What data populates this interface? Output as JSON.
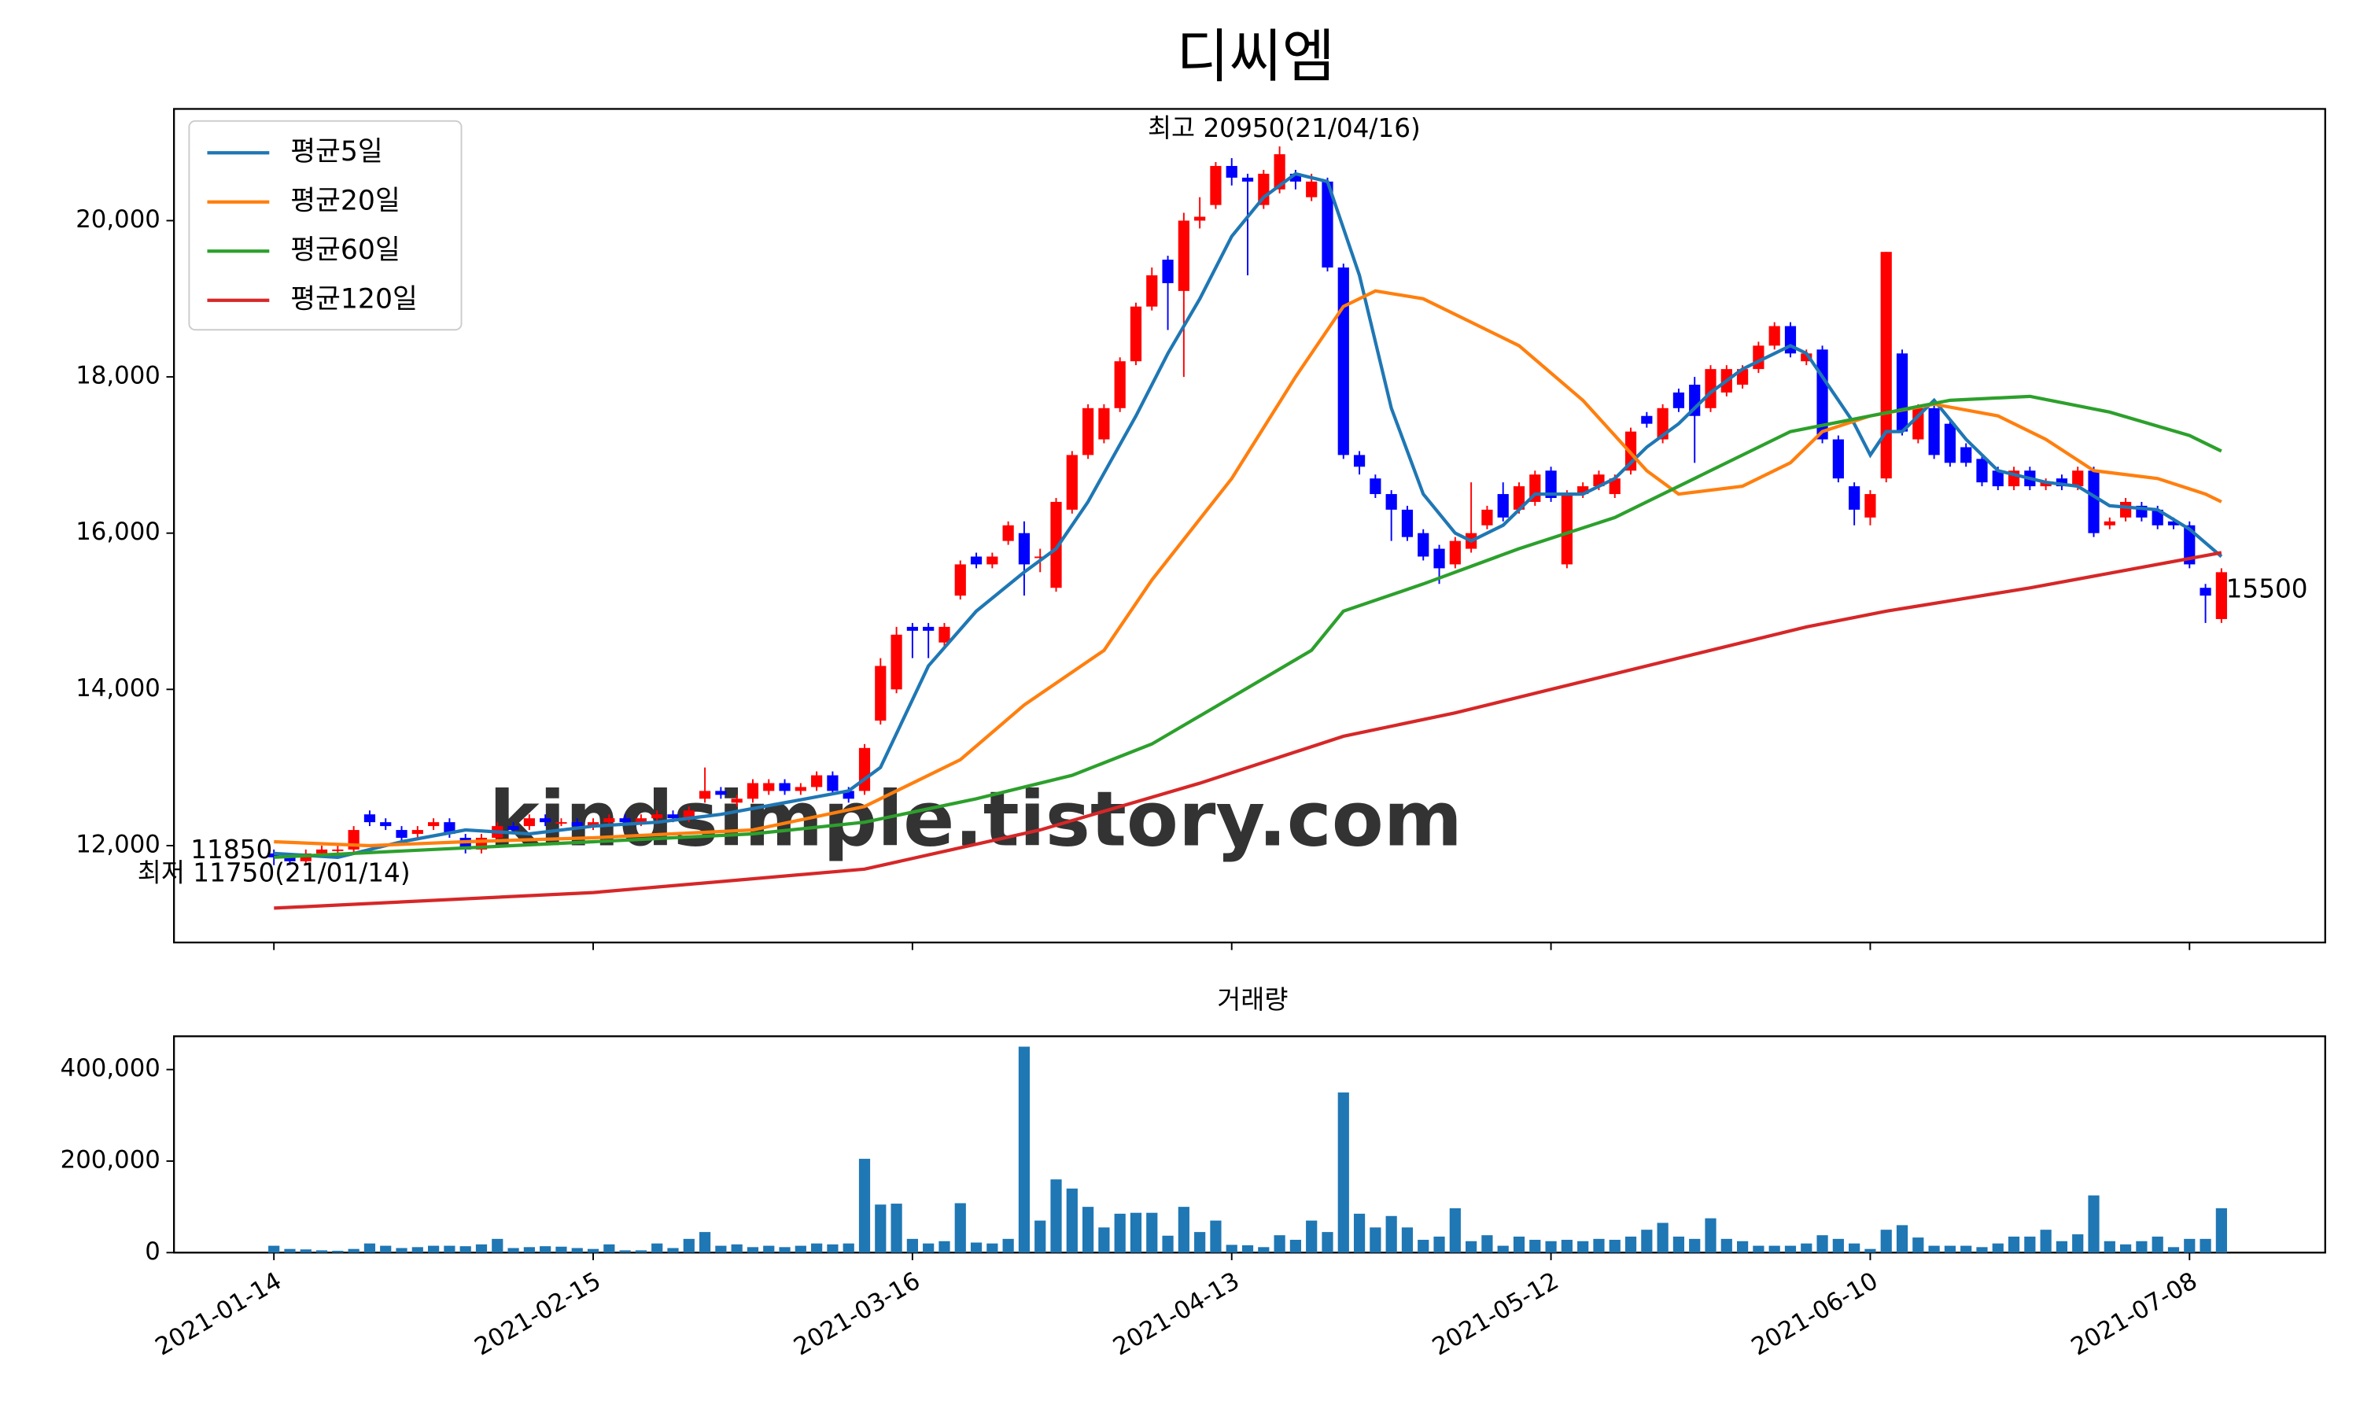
{
  "chart_data": [
    {
      "type": "candlestick",
      "title": "디씨엠",
      "open": [
        11900,
        11850,
        11800,
        11900,
        11950,
        11950,
        12400,
        12300,
        12200,
        12150,
        12250,
        12300,
        12100,
        11950,
        12100,
        12250,
        12250,
        12350,
        12300,
        12300,
        12250,
        12300,
        12350,
        12300,
        12350,
        12400,
        12350,
        12600,
        12700,
        12550,
        12600,
        12700,
        12800,
        12700,
        12750,
        12900,
        12700,
        12700,
        13600,
        14000,
        14800,
        14800,
        14600,
        15200,
        15700,
        15600,
        15900,
        16000,
        15700,
        15300,
        16300,
        17000,
        17200,
        17600,
        18200,
        18900,
        19500,
        19100,
        20000,
        20200,
        20700,
        20550,
        20200,
        20400,
        20600,
        20300,
        20500,
        19400,
        17000,
        16700,
        16500,
        16300,
        16000,
        15800,
        15600,
        15800,
        16100,
        16500,
        16300,
        16400,
        16800,
        15600,
        16500,
        16600,
        16500,
        16800,
        17500,
        17200,
        17800,
        17900,
        17600,
        17800,
        17900,
        18100,
        18400,
        18650,
        18200,
        18350,
        17200,
        16600,
        16200,
        16700,
        18300,
        17200,
        17600,
        17400,
        17100,
        16950,
        16800,
        16600,
        16800,
        16600,
        16700,
        16600,
        16800,
        16100,
        16200,
        16350,
        16300,
        16150,
        16100,
        15300,
        14900
      ],
      "high": [
        11950,
        11900,
        11950,
        12000,
        12000,
        12250,
        12450,
        12350,
        12250,
        12250,
        12350,
        12350,
        12150,
        12150,
        12300,
        12300,
        12400,
        12400,
        12350,
        12350,
        12350,
        12400,
        12400,
        12400,
        12450,
        12450,
        12500,
        13000,
        12750,
        12650,
        12850,
        12850,
        12850,
        12800,
        12950,
        12950,
        12750,
        13300,
        14400,
        14800,
        14850,
        14850,
        14850,
        15650,
        15750,
        15750,
        16150,
        16150,
        15800,
        16450,
        17050,
        17650,
        17650,
        18250,
        18950,
        19400,
        19550,
        20100,
        20300,
        20750,
        20800,
        20600,
        20650,
        20950,
        20650,
        20600,
        20550,
        19450,
        17050,
        16750,
        16550,
        16350,
        16050,
        15850,
        15950,
        16650,
        16350,
        16650,
        16650,
        16800,
        16850,
        16550,
        16650,
        16800,
        16750,
        17350,
        17550,
        17650,
        17850,
        18000,
        18150,
        18150,
        18150,
        18450,
        18700,
        18700,
        18350,
        18400,
        17250,
        16650,
        16550,
        19600,
        18350,
        17650,
        17650,
        17450,
        17150,
        17000,
        16850,
        16850,
        16850,
        16700,
        16750,
        16850,
        16850,
        16200,
        16450,
        16400,
        16350,
        16200,
        16150,
        15350,
        15550
      ],
      "low": [
        11750,
        11750,
        11750,
        11850,
        11900,
        11900,
        12250,
        12200,
        12050,
        12100,
        12200,
        12100,
        11900,
        11900,
        12050,
        12150,
        12200,
        12250,
        12250,
        12200,
        12200,
        12250,
        12250,
        12250,
        12300,
        12300,
        12300,
        12550,
        12600,
        12500,
        12550,
        12650,
        12650,
        12650,
        12700,
        12650,
        12550,
        12650,
        13550,
        13950,
        14400,
        14400,
        14550,
        15150,
        15550,
        15550,
        15850,
        15200,
        15500,
        15250,
        16250,
        16950,
        17150,
        17550,
        18150,
        18850,
        18600,
        18000,
        19900,
        20150,
        20450,
        19300,
        20150,
        20350,
        20400,
        20250,
        19350,
        16950,
        16750,
        16450,
        15900,
        15900,
        15650,
        15350,
        15550,
        15750,
        16050,
        16150,
        16250,
        16350,
        16400,
        15550,
        16450,
        16550,
        16450,
        16750,
        17350,
        17150,
        17550,
        16900,
        17550,
        17750,
        17850,
        18050,
        18350,
        18250,
        18150,
        17150,
        16650,
        16100,
        16100,
        16650,
        17250,
        17150,
        16950,
        16850,
        16850,
        16600,
        16550,
        16550,
        16550,
        16550,
        16550,
        16550,
        15950,
        16050,
        16150,
        16150,
        16050,
        16050,
        15550,
        14850,
        14850
      ],
      "close": [
        11850,
        11800,
        11900,
        11950,
        11950,
        12200,
        12300,
        12250,
        12100,
        12200,
        12300,
        12150,
        11950,
        12100,
        12250,
        12200,
        12350,
        12300,
        12300,
        12250,
        12300,
        12350,
        12300,
        12350,
        12400,
        12350,
        12450,
        12700,
        12650,
        12600,
        12800,
        12800,
        12700,
        12750,
        12900,
        12700,
        12600,
        13250,
        14300,
        14700,
        14750,
        14750,
        14800,
        15600,
        15600,
        15700,
        16100,
        15600,
        15700,
        16400,
        17000,
        17600,
        17600,
        18200,
        18900,
        19300,
        19200,
        20000,
        20050,
        20700,
        20550,
        20500,
        20600,
        20850,
        20500,
        20500,
        19400,
        17000,
        16850,
        16500,
        16300,
        15950,
        15700,
        15550,
        15900,
        16000,
        16300,
        16200,
        16600,
        16750,
        16450,
        16500,
        16600,
        16750,
        16700,
        17300,
        17400,
        17600,
        17600,
        17500,
        18100,
        18100,
        18100,
        18400,
        18650,
        18300,
        18300,
        17200,
        16700,
        16300,
        16500,
        19600,
        17300,
        17600,
        17000,
        16900,
        16900,
        16650,
        16600,
        16800,
        16600,
        16650,
        16600,
        16800,
        16000,
        16150,
        16400,
        16200,
        16100,
        16100,
        15600,
        15200,
        15500
      ],
      "up_color": "#ff0000",
      "down_color": "#0000ff",
      "series": [
        {
          "name": "평균5일",
          "color": "#1f77b4",
          "x": [
            0,
            4,
            8,
            12,
            16,
            20,
            24,
            28,
            32,
            36,
            38,
            41,
            44,
            47,
            49,
            51,
            54,
            56,
            58,
            60,
            62,
            64,
            66,
            68,
            70,
            72,
            74,
            75,
            77,
            79,
            82,
            84,
            86,
            88,
            90,
            92,
            95,
            96,
            98,
            99,
            100,
            101,
            102,
            104,
            106,
            108,
            111,
            113,
            115,
            118,
            120,
            122
          ],
          "values": [
            11900,
            11850,
            12050,
            12200,
            12150,
            12250,
            12300,
            12400,
            12550,
            12700,
            13000,
            14300,
            15000,
            15500,
            15800,
            16400,
            17500,
            18300,
            19000,
            19800,
            20300,
            20600,
            20500,
            19300,
            17600,
            16500,
            16000,
            15900,
            16100,
            16500,
            16500,
            16700,
            17100,
            17400,
            17800,
            18100,
            18400,
            18300,
            17700,
            17400,
            17000,
            17300,
            17300,
            17700,
            17200,
            16800,
            16650,
            16600,
            16350,
            16300,
            16050,
            15700
          ]
        },
        {
          "name": "평균20일",
          "color": "#ff7f0e",
          "x": [
            0,
            6,
            12,
            20,
            30,
            37,
            40,
            43,
            47,
            52,
            55,
            60,
            64,
            67,
            69,
            72,
            75,
            78,
            82,
            86,
            88,
            92,
            95,
            97,
            100,
            104,
            108,
            111,
            114,
            118,
            121,
            122
          ],
          "values": [
            12050,
            12000,
            12050,
            12100,
            12200,
            12500,
            12800,
            13100,
            13800,
            14500,
            15400,
            16700,
            18000,
            18900,
            19100,
            19000,
            18700,
            18400,
            17700,
            16800,
            16500,
            16600,
            16900,
            17300,
            17500,
            17650,
            17500,
            17200,
            16800,
            16700,
            16500,
            16400
          ]
        },
        {
          "name": "평균60일",
          "color": "#2ca02c",
          "x": [
            0,
            10,
            20,
            30,
            37,
            44,
            50,
            55,
            60,
            65,
            67,
            72,
            78,
            84,
            90,
            95,
            100,
            105,
            110,
            115,
            120,
            122
          ],
          "values": [
            11850,
            11950,
            12050,
            12150,
            12300,
            12600,
            12900,
            13300,
            13900,
            14500,
            15000,
            15350,
            15800,
            16200,
            16800,
            17300,
            17500,
            17700,
            17750,
            17550,
            17250,
            17050
          ]
        },
        {
          "name": "평균120일",
          "color": "#d62728",
          "x": [
            0,
            20,
            37,
            48,
            58,
            67,
            74,
            80,
            88,
            96,
            101,
            110,
            122
          ],
          "values": [
            11200,
            11400,
            11700,
            12200,
            12800,
            13400,
            13700,
            14000,
            14400,
            14800,
            15000,
            15300,
            15750
          ]
        }
      ],
      "xlim": [
        -6.26,
        128.5
      ],
      "ylim": [
        10760,
        21430
      ],
      "yticks": [
        {
          "value": 12000,
          "label": "12,000"
        },
        {
          "value": 14000,
          "label": "14,000"
        },
        {
          "value": 16000,
          "label": "16,000"
        },
        {
          "value": 18000,
          "label": "18,000"
        },
        {
          "value": 20000,
          "label": "20,000"
        }
      ],
      "legend": "upper left",
      "annotations": {
        "high": "최고 20950(21/04/16)",
        "low": "최저 11750(21/01/14)",
        "first": "11850",
        "last": "15500"
      },
      "watermark": "kindsimple.tistory.com"
    },
    {
      "type": "bar",
      "title": "거래량",
      "color": "#1f77b4",
      "categories": [
        "2021-01-14",
        null,
        null,
        null,
        null,
        null,
        null,
        null,
        null,
        null,
        null,
        null,
        null,
        null,
        null,
        null,
        null,
        null,
        null,
        null,
        "2021-02-15",
        null,
        null,
        null,
        null,
        null,
        null,
        null,
        null,
        null,
        null,
        null,
        null,
        null,
        null,
        null,
        null,
        null,
        null,
        null,
        "2021-03-16",
        null,
        null,
        null,
        null,
        null,
        null,
        null,
        null,
        null,
        null,
        null,
        null,
        null,
        null,
        null,
        null,
        null,
        null,
        null,
        "2021-04-13",
        null,
        null,
        null,
        null,
        null,
        null,
        null,
        null,
        null,
        null,
        null,
        null,
        null,
        null,
        null,
        null,
        null,
        null,
        null,
        "2021-05-12",
        null,
        null,
        null,
        null,
        null,
        null,
        null,
        null,
        null,
        null,
        null,
        null,
        null,
        null,
        null,
        null,
        null,
        null,
        null,
        "2021-06-10",
        null,
        null,
        null,
        null,
        null,
        null,
        null,
        null,
        null,
        null,
        null,
        null,
        null,
        null,
        null,
        null,
        null,
        null,
        null,
        "2021-07-08",
        null,
        null
      ],
      "values": [
        15000,
        8000,
        7000,
        5000,
        4000,
        8000,
        20000,
        15000,
        10000,
        12000,
        15000,
        15000,
        14000,
        18000,
        30000,
        10000,
        12000,
        14000,
        13000,
        10000,
        8000,
        18000,
        5000,
        5000,
        20000,
        10000,
        30000,
        45000,
        15000,
        18000,
        12000,
        15000,
        12000,
        15000,
        20000,
        18000,
        20000,
        205000,
        105000,
        107000,
        30000,
        20000,
        25000,
        108000,
        22000,
        20000,
        30000,
        450000,
        70000,
        160000,
        140000,
        100000,
        55000,
        85000,
        87000,
        87000,
        37000,
        100000,
        45000,
        70000,
        17000,
        16000,
        12000,
        38000,
        28000,
        70000,
        45000,
        350000,
        85000,
        55000,
        80000,
        55000,
        28000,
        35000,
        97000,
        25000,
        38000,
        15000,
        35000,
        28000,
        25000,
        28000,
        25000,
        30000,
        28000,
        35000,
        50000,
        65000,
        35000,
        30000,
        75000,
        30000,
        25000,
        15000,
        15000,
        15000,
        20000,
        38000,
        30000,
        20000,
        8000,
        50000,
        60000,
        33000,
        15000,
        15000,
        15000,
        12000,
        20000,
        35000,
        35000,
        50000,
        25000,
        40000,
        125000,
        25000,
        18000,
        25000,
        35000,
        12000,
        30000,
        30000,
        97000
      ],
      "xlim": [
        -6.26,
        128.5
      ],
      "ylim": [
        0,
        472700
      ],
      "yticks": [
        0,
        {
          "value": 200000,
          "label": "200,000"
        },
        {
          "value": 400000,
          "label": "400,000"
        }
      ]
    }
  ]
}
